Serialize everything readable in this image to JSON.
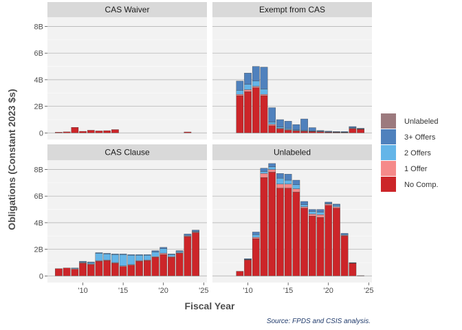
{
  "chart_data": {
    "type": "bar",
    "stacked": true,
    "facets": [
      "CAS Waiver",
      "Exempt from CAS",
      "CAS Clause",
      "Unlabeled"
    ],
    "xlabel": "Fiscal Year",
    "ylabel": "Obligations (Constant 2023 $s)",
    "caption": "Source: FPDS and CSIS analysis.",
    "x_ticks": [
      {
        "value": 2010,
        "label": "'10"
      },
      {
        "value": 2015,
        "label": "'15"
      },
      {
        "value": 2020,
        "label": "'20"
      },
      {
        "value": 2025,
        "label": "'25"
      }
    ],
    "y_ticks": [
      {
        "value": 0,
        "label": "0"
      },
      {
        "value": 2,
        "label": "2B"
      },
      {
        "value": 4,
        "label": "4B"
      },
      {
        "value": 6,
        "label": "6B"
      },
      {
        "value": 8,
        "label": "8B"
      }
    ],
    "xlim": [
      2005.6,
      2025.4
    ],
    "ylim": [
      -0.5,
      8.7
    ],
    "years": [
      2007,
      2008,
      2009,
      2010,
      2011,
      2012,
      2013,
      2014,
      2015,
      2016,
      2017,
      2018,
      2019,
      2020,
      2021,
      2022,
      2023,
      2024
    ],
    "legend_position": "right",
    "categories": [
      "Unlabeled",
      "3+ Offers",
      "2 Offers",
      "1 Offer",
      "No Comp."
    ],
    "colors": {
      "Unlabeled": "#9c7a7e",
      "3+ Offers": "#4f81bd",
      "2 Offers": "#64b5e8",
      "1 Offer": "#f58a8a",
      "No Comp.": "#cc2529"
    },
    "panels": [
      {
        "facet": "CAS Waiver",
        "series": [
          {
            "name": "No Comp.",
            "values": [
              0.05,
              0.08,
              0.42,
              0.12,
              0.2,
              0.15,
              0.17,
              0.25,
              0,
              0,
              0,
              0,
              0,
              0,
              0,
              0,
              0.07,
              0
            ]
          }
        ]
      },
      {
        "facet": "Exempt from CAS",
        "series": [
          {
            "name": "No Comp.",
            "values": [
              0,
              0,
              2.8,
              3.1,
              3.4,
              2.8,
              0.55,
              0.3,
              0.2,
              0.15,
              0.12,
              0.1,
              0.08,
              0.05,
              0.04,
              0.03,
              0.32,
              0.28
            ]
          },
          {
            "name": "1 Offer",
            "values": [
              0,
              0,
              0.1,
              0.15,
              0.1,
              0.1,
              0.1,
              0.05,
              0.05,
              0.03,
              0.03,
              0.02,
              0.02,
              0.01,
              0.01,
              0.01,
              0.03,
              0.01
            ]
          },
          {
            "name": "2 Offers",
            "values": [
              0,
              0,
              0.3,
              0.4,
              0.4,
              0.4,
              0.15,
              0.1,
              0.08,
              0.05,
              0.05,
              0.03,
              0.03,
              0.02,
              0.02,
              0.02,
              0.05,
              0.02
            ]
          },
          {
            "name": "3+ Offers",
            "values": [
              0,
              0,
              0.7,
              0.85,
              1.1,
              1.65,
              1.1,
              0.55,
              0.55,
              0.4,
              0.85,
              0.25,
              0.05,
              0.05,
              0.03,
              0.04,
              0.08,
              0.04
            ]
          }
        ]
      },
      {
        "facet": "CAS Clause",
        "series": [
          {
            "name": "No Comp.",
            "values": [
              0.55,
              0.6,
              0.5,
              0.95,
              0.85,
              1.1,
              1.15,
              0.95,
              0.7,
              0.8,
              1.1,
              1.15,
              1.4,
              1.6,
              1.4,
              1.7,
              2.95,
              3.25
            ]
          },
          {
            "name": "1 Offer",
            "values": [
              0,
              0,
              0.05,
              0.05,
              0.05,
              0.05,
              0.05,
              0.05,
              0.05,
              0.05,
              0.05,
              0.05,
              0.05,
              0.1,
              0.05,
              0.05,
              0.05,
              0.05
            ]
          },
          {
            "name": "2 Offers",
            "values": [
              0,
              0,
              0.05,
              0.05,
              0.1,
              0.55,
              0.45,
              0.6,
              0.85,
              0.7,
              0.4,
              0.35,
              0.35,
              0.35,
              0.15,
              0.1,
              0.05,
              0.05
            ]
          },
          {
            "name": "3+ Offers",
            "values": [
              0,
              0,
              0,
              0.05,
              0.05,
              0.05,
              0.05,
              0.05,
              0.05,
              0.05,
              0.05,
              0.05,
              0.1,
              0.1,
              0.05,
              0.05,
              0.1,
              0.1
            ]
          }
        ]
      },
      {
        "facet": "Unlabeled",
        "series": [
          {
            "name": "No Comp.",
            "values": [
              0,
              0,
              0.35,
              1.2,
              2.8,
              7.4,
              7.8,
              6.6,
              6.6,
              6.3,
              5.1,
              4.5,
              4.4,
              5.3,
              5.1,
              3.0,
              0.95,
              0.02
            ]
          },
          {
            "name": "1 Offer",
            "values": [
              0,
              0,
              0,
              0.02,
              0.1,
              0.3,
              0.2,
              0.3,
              0.3,
              0.25,
              0.1,
              0.15,
              0.2,
              0.1,
              0.1,
              0.05,
              0.02,
              0
            ]
          },
          {
            "name": "2 Offers",
            "values": [
              0,
              0,
              0,
              0.03,
              0.2,
              0.15,
              0.2,
              0.45,
              0.3,
              0.3,
              0.15,
              0.2,
              0.2,
              0.05,
              0.1,
              0.05,
              0.02,
              0
            ]
          },
          {
            "name": "3+ Offers",
            "values": [
              0,
              0,
              0,
              0.05,
              0.2,
              0.25,
              0.25,
              0.35,
              0.45,
              0.35,
              0.25,
              0.15,
              0.2,
              0.1,
              0.1,
              0.1,
              0.01,
              0
            ]
          }
        ]
      }
    ]
  }
}
